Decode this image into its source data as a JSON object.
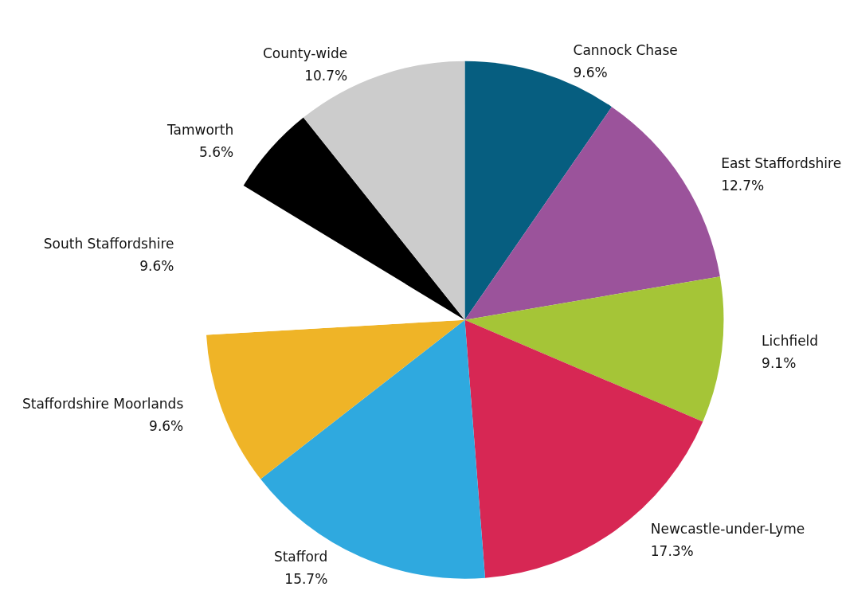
{
  "chart_data": {
    "type": "pie",
    "categories": [
      "Cannock Chase",
      "East Staffordshire",
      "Lichfield",
      "Newcastle-under-Lyme",
      "Stafford",
      "Staffordshire Moorlands",
      "South Staffordshire",
      "Tamworth",
      "County-wide"
    ],
    "values": [
      9.6,
      12.7,
      9.1,
      17.3,
      15.7,
      9.6,
      9.6,
      5.6,
      10.7
    ],
    "value_labels": [
      "9.6%",
      "12.7%",
      "9.1%",
      "17.3%",
      "15.7%",
      "9.6%",
      "9.6%",
      "5.6%",
      "10.7%"
    ],
    "colors": [
      "#065e80",
      "#9b539b",
      "#a5c537",
      "#d72754",
      "#2fa9df",
      "#efb427",
      "#ffffff",
      "#000000",
      "#cccccc"
    ],
    "legend": false
  }
}
